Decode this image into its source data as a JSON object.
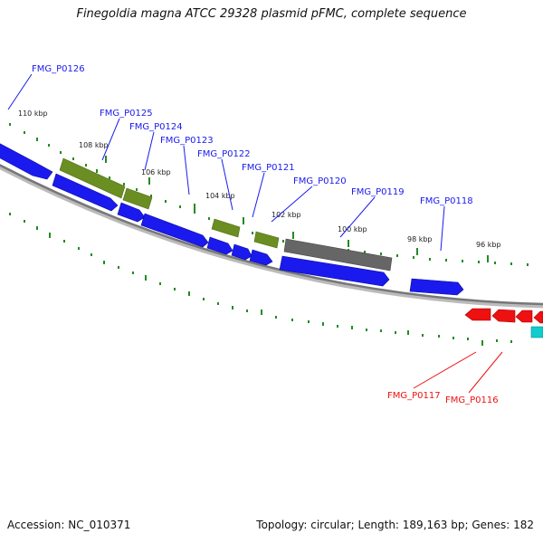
{
  "title": "Finegoldia magna ATCC 29328 plasmid pFMC, complete sequence",
  "footer": {
    "accession": "Accession: NC_010371",
    "summary": "Topology: circular; Length: 189,163 bp; Genes: 182"
  },
  "colors": {
    "forward_gene": "#1a1aee",
    "green_gene": "#6b8e23",
    "gray_gene": "#666666",
    "reverse_gene": "#ee1111",
    "cyan_gene": "#11cccc",
    "backbone": "#888888",
    "tick": "#228b22"
  },
  "tick_labels": [
    "110 kbp",
    "108 kbp",
    "106 kbp",
    "104 kbp",
    "102 kbp",
    "100 kbp",
    "98 kbp",
    "96 kbp"
  ],
  "gene_labels_top": [
    {
      "text": "FMG_P0126",
      "color": "blue"
    },
    {
      "text": "FMG_P0125",
      "color": "blue"
    },
    {
      "text": "FMG_P0124",
      "color": "blue"
    },
    {
      "text": "FMG_P0123",
      "color": "blue"
    },
    {
      "text": "FMG_P0122",
      "color": "blue"
    },
    {
      "text": "FMG_P0121",
      "color": "blue"
    },
    {
      "text": "FMG_P0120",
      "color": "blue"
    },
    {
      "text": "FMG_P0119",
      "color": "blue"
    },
    {
      "text": "FMG_P0118",
      "color": "blue"
    }
  ],
  "gene_labels_bottom": [
    {
      "text": "FMG_P0117",
      "color": "red"
    },
    {
      "text": "FMG_P0116",
      "color": "red"
    }
  ]
}
